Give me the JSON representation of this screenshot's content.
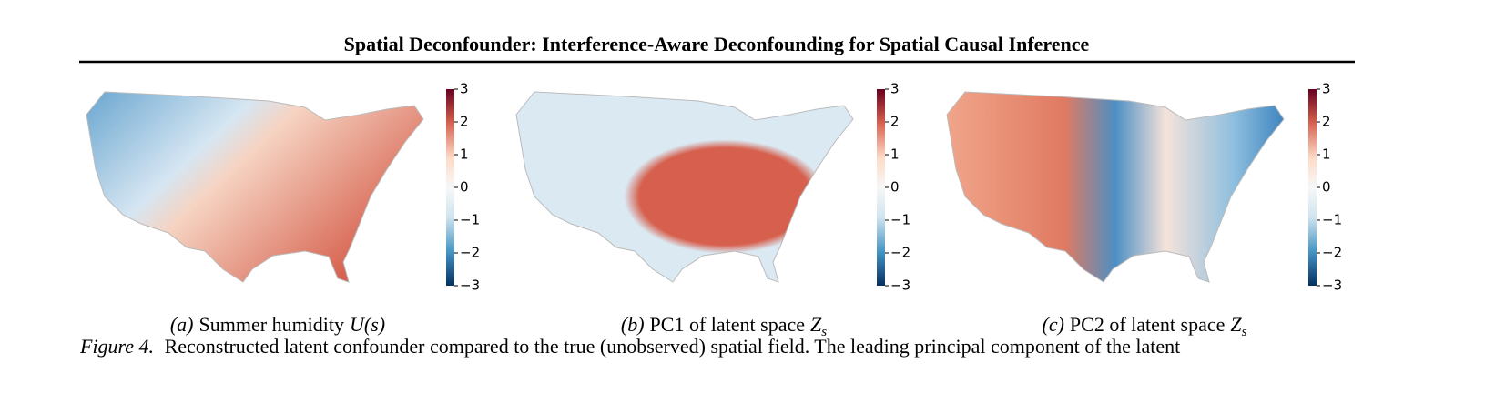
{
  "header": {
    "title": "Spatial Deconfounder: Interference-Aware Deconfounding for Spatial Causal Inference"
  },
  "subfigures": [
    {
      "label": "(a)",
      "text": "Summer humidity",
      "math": "U(s)",
      "colorbar": {
        "ylim": [
          -3,
          3
        ],
        "yticks": [
          3,
          2,
          1,
          0,
          {
            "value": -1,
            "label": "−1"
          },
          {
            "value": -2,
            "label": "−2"
          },
          {
            "value": -3,
            "label": "−3"
          }
        ]
      }
    },
    {
      "label": "(b)",
      "text": "PC1 of latent space",
      "math": "Z",
      "math_sub": "s",
      "colorbar": {
        "ylim": [
          -3,
          3
        ],
        "yticks": [
          3,
          2,
          1,
          0,
          {
            "value": -1,
            "label": "−1"
          },
          {
            "value": -2,
            "label": "−2"
          },
          {
            "value": -3,
            "label": "−3"
          }
        ]
      }
    },
    {
      "label": "(c)",
      "text": "PC2 of latent space",
      "math": "Z",
      "math_sub": "s",
      "colorbar": {
        "ylim": [
          -3,
          3
        ],
        "yticks": [
          3,
          2,
          1,
          0,
          {
            "value": -1,
            "label": "−1"
          },
          {
            "value": -2,
            "label": "−2"
          },
          {
            "value": -3,
            "label": "−3"
          }
        ]
      }
    }
  ],
  "caption": {
    "label": "Figure 4.",
    "text": "Reconstructed latent confounder compared to the true (unobserved) spatial field. The leading principal component of the latent"
  }
}
